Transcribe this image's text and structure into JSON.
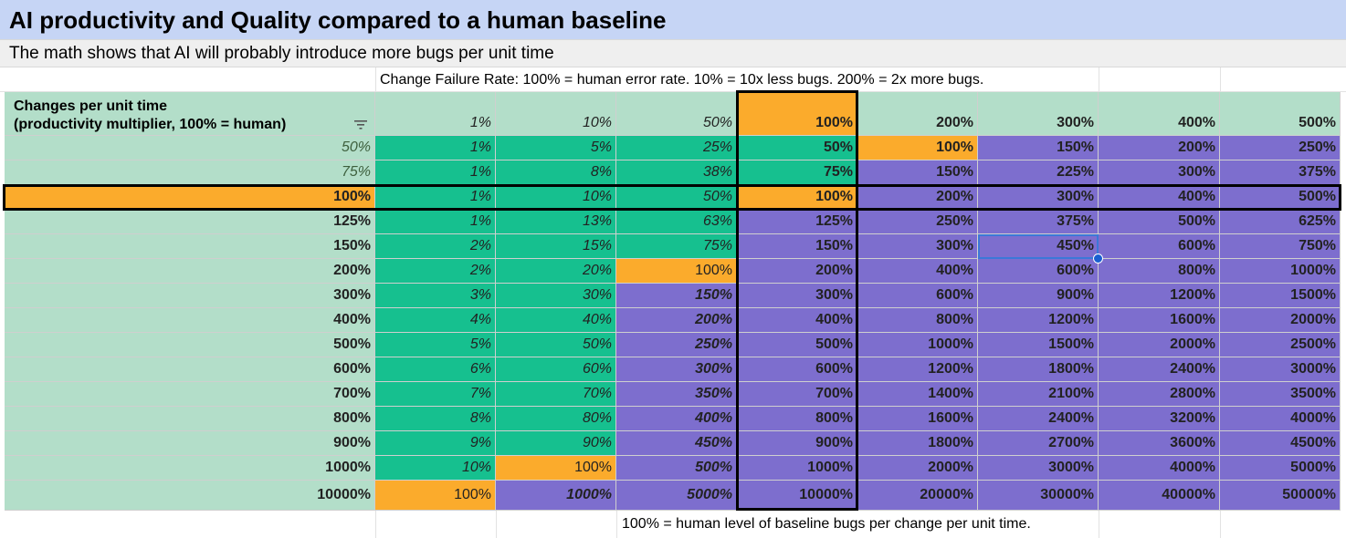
{
  "title": "AI productivity and Quality compared to a human baseline",
  "subtitle": "The math shows that AI will probably introduce more bugs per unit time",
  "cfr_note": "Change Failure Rate: 100% = human error rate. 10% = 10x less bugs. 200% = 2x more bugs.",
  "footer_note": "100% = human level of baseline bugs per change per unit time.",
  "row_header_label": "Changes per unit time (productivity multiplier, 100% = human)",
  "row_header_lines": [
    "Changes per unit time",
    "(productivity multiplier, 100% = human)"
  ],
  "colors": {
    "title_bg": "#c6d5f5",
    "subtitle_bg": "#efefef",
    "header_green": "#b3dec9",
    "fewer_bugs": "#16c08f",
    "parity": "#fbab2c",
    "more_bugs": "#7d6ece",
    "selection": "#3c78d8"
  },
  "icons": {
    "filter": "filter-icon",
    "fill_handle": "fill-handle-icon"
  },
  "table": {
    "columns": [
      "1%",
      "10%",
      "50%",
      "100%",
      "200%",
      "300%",
      "400%",
      "500%"
    ],
    "rows": [
      {
        "label": "50%",
        "values": [
          "1%",
          "5%",
          "25%",
          "50%",
          "100%",
          "150%",
          "200%",
          "250%"
        ]
      },
      {
        "label": "75%",
        "values": [
          "1%",
          "8%",
          "38%",
          "75%",
          "150%",
          "225%",
          "300%",
          "375%"
        ]
      },
      {
        "label": "100%",
        "values": [
          "1%",
          "10%",
          "50%",
          "100%",
          "200%",
          "300%",
          "400%",
          "500%"
        ]
      },
      {
        "label": "125%",
        "values": [
          "1%",
          "13%",
          "63%",
          "125%",
          "250%",
          "375%",
          "500%",
          "625%"
        ]
      },
      {
        "label": "150%",
        "values": [
          "2%",
          "15%",
          "75%",
          "150%",
          "300%",
          "450%",
          "600%",
          "750%"
        ]
      },
      {
        "label": "200%",
        "values": [
          "2%",
          "20%",
          "100%",
          "200%",
          "400%",
          "600%",
          "800%",
          "1000%"
        ]
      },
      {
        "label": "300%",
        "values": [
          "3%",
          "30%",
          "150%",
          "300%",
          "600%",
          "900%",
          "1200%",
          "1500%"
        ]
      },
      {
        "label": "400%",
        "values": [
          "4%",
          "40%",
          "200%",
          "400%",
          "800%",
          "1200%",
          "1600%",
          "2000%"
        ]
      },
      {
        "label": "500%",
        "values": [
          "5%",
          "50%",
          "250%",
          "500%",
          "1000%",
          "1500%",
          "2000%",
          "2500%"
        ]
      },
      {
        "label": "600%",
        "values": [
          "6%",
          "60%",
          "300%",
          "600%",
          "1200%",
          "1800%",
          "2400%",
          "3000%"
        ]
      },
      {
        "label": "700%",
        "values": [
          "7%",
          "70%",
          "350%",
          "700%",
          "1400%",
          "2100%",
          "2800%",
          "3500%"
        ]
      },
      {
        "label": "800%",
        "values": [
          "8%",
          "80%",
          "400%",
          "800%",
          "1600%",
          "2400%",
          "3200%",
          "4000%"
        ]
      },
      {
        "label": "900%",
        "values": [
          "9%",
          "90%",
          "450%",
          "900%",
          "1800%",
          "2700%",
          "3600%",
          "4500%"
        ]
      },
      {
        "label": "1000%",
        "values": [
          "10%",
          "100%",
          "500%",
          "1000%",
          "2000%",
          "3000%",
          "4000%",
          "5000%"
        ]
      },
      {
        "label": "10000%",
        "values": [
          "100%",
          "1000%",
          "5000%",
          "10000%",
          "20000%",
          "30000%",
          "40000%",
          "50000%"
        ]
      }
    ]
  },
  "selected_cell": {
    "row_label": "150%",
    "column_label": "300%",
    "value": "450%"
  }
}
